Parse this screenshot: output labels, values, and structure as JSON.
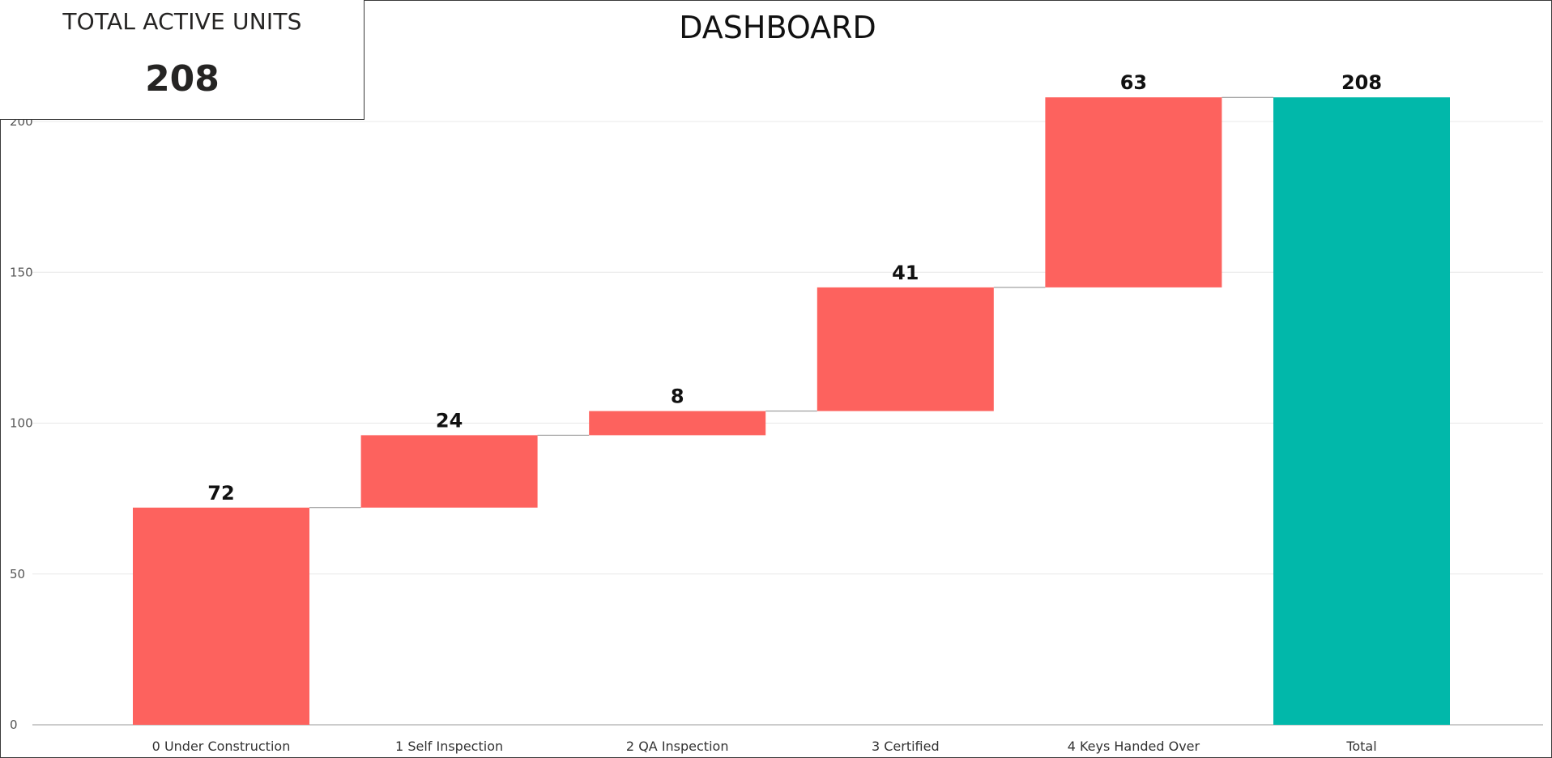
{
  "header": {
    "title": "DASHBOARD"
  },
  "kpi": {
    "title": "TOTAL ACTIVE UNITS",
    "value": "208"
  },
  "colors": {
    "increase": "#fd625e",
    "total": "#01b8aa",
    "connector": "#8a8a8a",
    "gridline": "#e8e8e8"
  },
  "chart_data": {
    "type": "bar",
    "subtype": "waterfall",
    "title": "DASHBOARD",
    "categories": [
      "0 Under Construction",
      "1 Self Inspection",
      "2 QA Inspection",
      "3 Certified",
      "4 Keys Handed Over",
      "Total"
    ],
    "values": [
      72,
      24,
      8,
      41,
      63,
      208
    ],
    "data_labels": [
      "72",
      "24",
      "8",
      "41",
      "63",
      "208"
    ],
    "ylim": [
      0,
      208
    ],
    "yticks": [
      0,
      50,
      100,
      150,
      200
    ],
    "grid": true,
    "xlabel": "",
    "ylabel": ""
  }
}
